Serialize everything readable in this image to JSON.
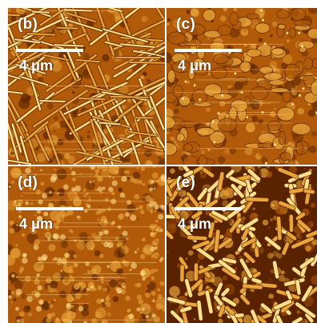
{
  "panels": [
    {
      "label": "(b)",
      "scale": "4 μm",
      "texture": "long crossed rod-like crystals"
    },
    {
      "label": "(c)",
      "scale": "4 μm",
      "texture": "granular terraced surface"
    },
    {
      "label": "(d)",
      "scale": "4 μm",
      "texture": "fine granular surface with scan streaks"
    },
    {
      "label": "(e)",
      "scale": "4 μm",
      "texture": "short randomly oriented rods"
    }
  ],
  "colors": {
    "dark": "#5a2300",
    "mid": "#b05a0a",
    "light": "#e9a53a",
    "highlight": "#ffe08a"
  }
}
